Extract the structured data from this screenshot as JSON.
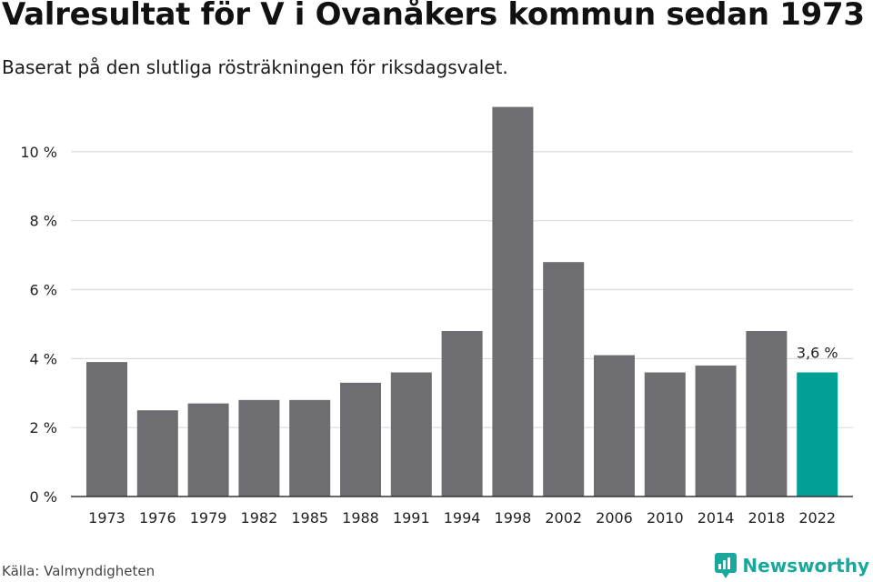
{
  "header": {
    "title": "Valresultat för V i Ovanåkers kommun sedan 1973",
    "subtitle": "Baserat på den slutliga rösträkningen för riksdagsvalet."
  },
  "footer": {
    "source": "Källa: Valmyndigheten",
    "brand": "Newsworthy"
  },
  "colors": {
    "bar": "#6e6d72",
    "highlight": "#00a096",
    "grid": "#dcdcdc",
    "axis": "#333333"
  },
  "chart_data": {
    "type": "bar",
    "categories": [
      "1973",
      "1976",
      "1979",
      "1982",
      "1985",
      "1988",
      "1991",
      "1994",
      "1998",
      "2002",
      "2006",
      "2010",
      "2014",
      "2018",
      "2022"
    ],
    "values": [
      3.9,
      2.5,
      2.7,
      2.8,
      2.8,
      3.3,
      3.6,
      4.8,
      11.3,
      6.8,
      4.1,
      3.6,
      3.8,
      4.8,
      3.6
    ],
    "highlight_index": 14,
    "data_labels": [
      {
        "index": 14,
        "text": "3,6 %"
      }
    ],
    "y_ticks": [
      0,
      2,
      4,
      6,
      8,
      10
    ],
    "y_tick_labels": [
      "0 %",
      "2 %",
      "4 %",
      "6 %",
      "8 %",
      "10 %"
    ],
    "ylim": [
      0,
      11.5
    ],
    "grid": true,
    "legend": "none"
  }
}
